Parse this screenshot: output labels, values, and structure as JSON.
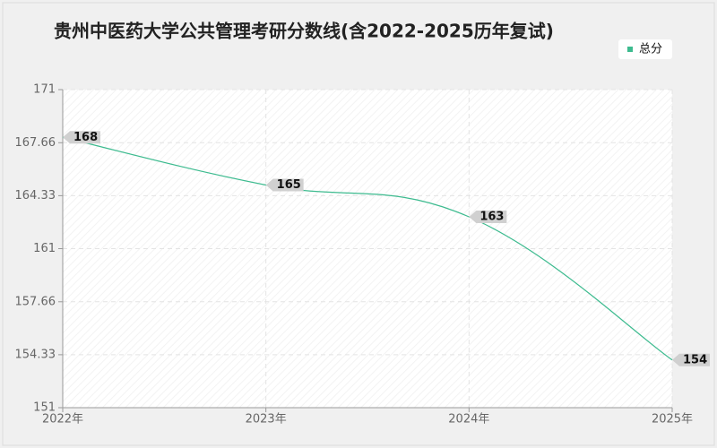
{
  "chart_data": {
    "type": "line",
    "title": "贵州中医药大学公共管理考研分数线(含2022-2025历年复试)",
    "categories": [
      "2022年",
      "2023年",
      "2024年",
      "2025年"
    ],
    "series": [
      {
        "name": "总分",
        "color": "#3dbb8f",
        "values": [
          168,
          165,
          163,
          154
        ]
      }
    ],
    "ylim": [
      151,
      171
    ],
    "yticks": [
      151,
      154.33,
      157.66,
      161,
      164.33,
      167.66,
      171
    ],
    "grid": true,
    "legend": "top-right"
  }
}
